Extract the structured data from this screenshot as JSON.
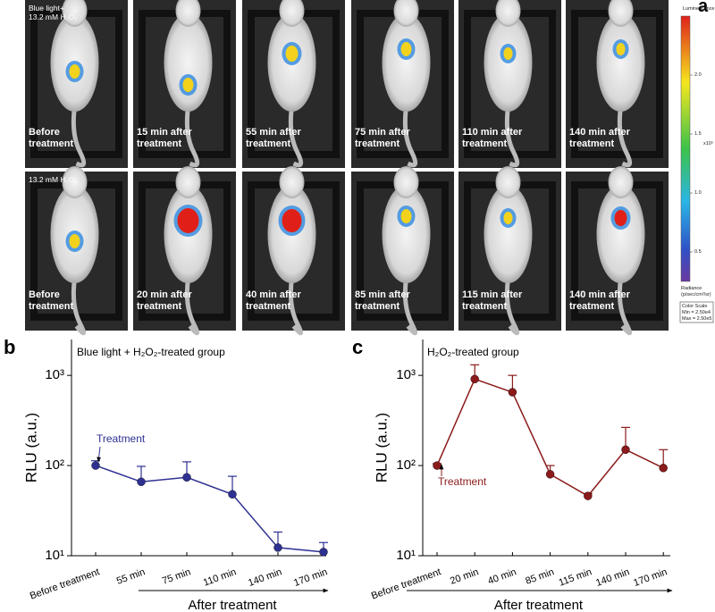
{
  "panel_a": {
    "label": "a",
    "rows": [
      {
        "condition": [
          "Blue light+",
          "13.2 mM H₂O₂"
        ],
        "captions": [
          "Before treatment",
          "15 min after treatment",
          "55 min after treatment",
          "75 min after treatment",
          "110 min after treatment",
          "140 min after treatment"
        ]
      },
      {
        "condition": [
          "13.2 mM H₂O₂"
        ],
        "captions": [
          "Before treatment",
          "20 min after treatment",
          "40 min after treatment",
          "85 min after treatment",
          "115 min after treatment",
          "140 min after treatment"
        ]
      }
    ],
    "colorbar": {
      "title": "Luminescence",
      "lim": [
        0.25,
        2.5
      ],
      "ticks": [
        {
          "value": 2.0,
          "label": "2.0"
        },
        1.5,
        {
          "value": 1.0,
          "label": "1.0"
        },
        0.5
      ],
      "multiplier": "x10⁵",
      "unit": [
        "Radiance",
        "(p/sec/cm²/sr)"
      ],
      "scale_box": [
        "Color Scale",
        "Min = 2.50e4",
        "Max = 2.50e5"
      ]
    }
  },
  "chart_data": [
    {
      "type": "line",
      "panel_label": "b",
      "title": "Blue light + H₂O₂-treated group",
      "ylabel": "RLU (a.u.)",
      "xlabel": "After treatment",
      "annotation": "Treatment",
      "categories": [
        "Before treatment",
        "55 min",
        "75 min",
        "110 min",
        "140 min",
        "170 min"
      ],
      "values": [
        100,
        66,
        74,
        48,
        12.3,
        11
      ],
      "errors": [
        13,
        32,
        36,
        28,
        6,
        3
      ],
      "color": "#2e3192",
      "log_y": true,
      "ylim": [
        10,
        2500
      ],
      "yticks": [
        {
          "value": 10,
          "label": "10¹"
        },
        {
          "value": 100,
          "label": "10²"
        },
        {
          "value": 1000,
          "label": "10³"
        }
      ]
    },
    {
      "type": "line",
      "panel_label": "c",
      "title": "H₂O₂-treated group",
      "ylabel": "RLU (a.u.)",
      "xlabel": "After treatment",
      "annotation": "Treatment",
      "categories": [
        "Before treatment",
        "20 min",
        "40 min",
        "85 min",
        "115 min",
        "140 min",
        "170 min"
      ],
      "values": [
        100,
        910,
        650,
        80,
        46,
        150,
        94
      ],
      "errors": [
        5,
        400,
        350,
        20,
        3,
        115,
        56
      ],
      "color": "#8b1a1a",
      "log_y": true,
      "ylim": [
        10,
        2500
      ],
      "yticks": [
        {
          "value": 10,
          "label": "10¹"
        },
        {
          "value": 100,
          "label": "10²"
        },
        {
          "value": 1000,
          "label": "10³"
        }
      ]
    }
  ]
}
